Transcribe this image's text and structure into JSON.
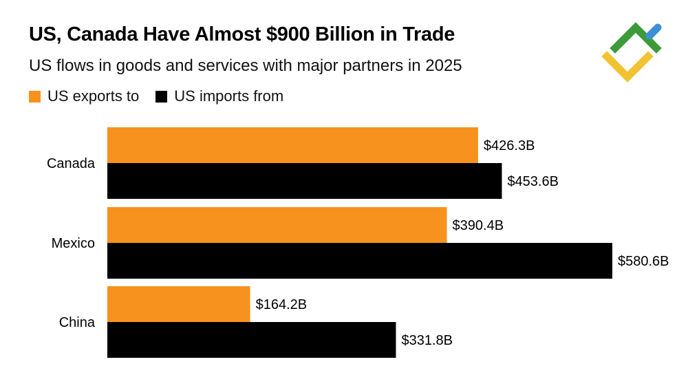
{
  "title": "US, Canada Have Almost $900 Billion in Trade",
  "subtitle": "US flows in goods and services with major partners in 2025",
  "legend": {
    "exports_label": "US exports to",
    "imports_label": "US imports from"
  },
  "colors": {
    "exports": "#F7921E",
    "imports": "#000000",
    "logo_green": "#3C9A3A",
    "logo_yellow": "#F1C232",
    "logo_blue": "#3D8FD6"
  },
  "logo": {
    "icon": "diamond-arrow-logo"
  },
  "chart_data": {
    "type": "bar",
    "orientation": "horizontal",
    "categories": [
      "Canada",
      "Mexico",
      "China"
    ],
    "series": [
      {
        "name": "US exports to",
        "values": [
          426.3,
          390.4,
          164.2
        ],
        "labels": [
          "$426.3B",
          "$390.4B",
          "$164.2B"
        ]
      },
      {
        "name": "US imports from",
        "values": [
          453.6,
          580.6,
          331.8
        ],
        "labels": [
          "$453.6B",
          "$580.6B",
          "$331.8B"
        ]
      }
    ],
    "title": "US, Canada Have Almost $900 Billion in Trade",
    "subtitle": "US flows in goods and services with major partners in 2025",
    "xlabel": "",
    "ylabel": "",
    "xlim": [
      0,
      580.6
    ],
    "grid": false,
    "legend_position": "top-left"
  }
}
